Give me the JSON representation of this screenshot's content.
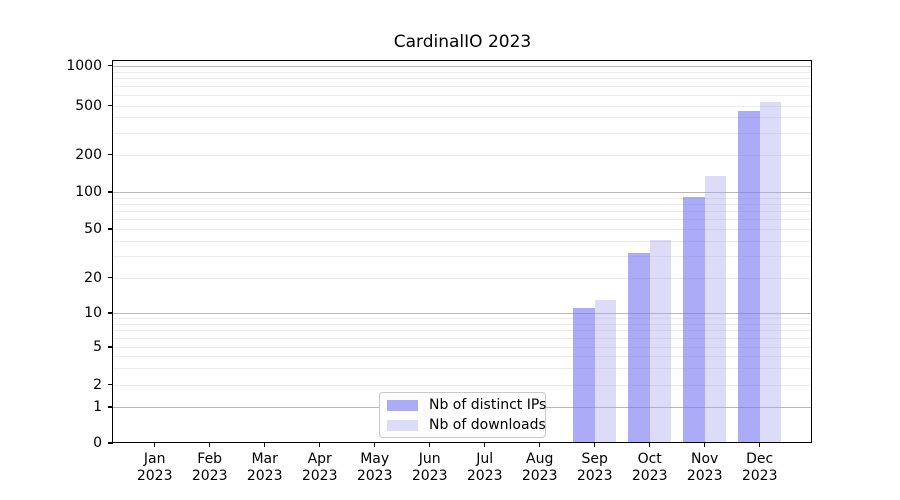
{
  "title": "CardinalIO 2023",
  "chart_data": {
    "type": "bar",
    "title": "CardinalIO 2023",
    "categories": [
      "Jan",
      "Feb",
      "Mar",
      "Apr",
      "May",
      "Jun",
      "Jul",
      "Aug",
      "Sep",
      "Oct",
      "Nov",
      "Dec"
    ],
    "x_tick_year": "2023",
    "yticks": [
      0,
      1,
      2,
      5,
      10,
      20,
      50,
      100,
      200,
      500,
      1000
    ],
    "yscale": "symlog",
    "ylim": [
      0,
      1100
    ],
    "grid": "horizontal major and minor gridlines",
    "legend_position": "lower-center",
    "series": [
      {
        "name": "Nb of distinct IPs",
        "color_hex": "#acacf8",
        "color_rgba": "rgba(115,115,244,0.6)",
        "values": [
          0,
          0,
          0,
          0,
          0,
          0,
          0,
          0,
          11,
          32,
          91,
          455
        ]
      },
      {
        "name": "Nb of downloads",
        "color_hex": "#dcdcf8",
        "color_rgba": "rgba(168,168,238,0.4)",
        "values": [
          0,
          0,
          0,
          0,
          0,
          0,
          0,
          0,
          13,
          41,
          134,
          535
        ]
      }
    ]
  }
}
